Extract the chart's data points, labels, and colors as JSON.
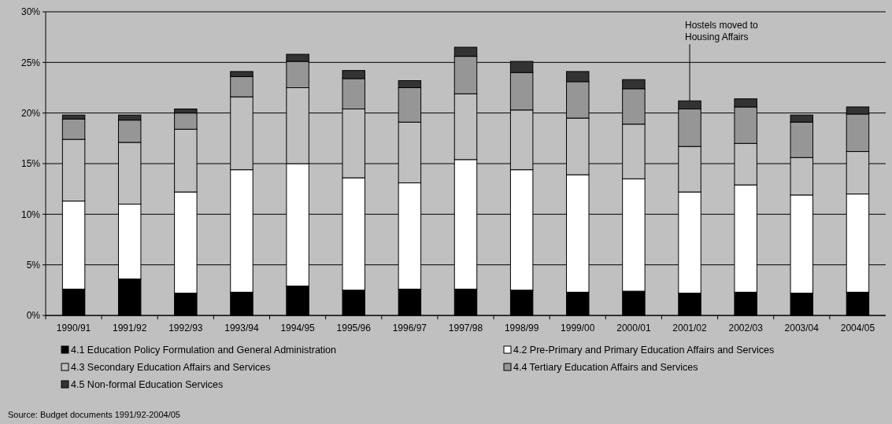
{
  "chart_data": {
    "type": "bar",
    "stacked": true,
    "categories": [
      "1990/91",
      "1991/92",
      "1992/93",
      "1993/94",
      "1994/95",
      "1995/96",
      "1996/97",
      "1997/98",
      "1998/99",
      "1999/00",
      "2000/01",
      "2001/02",
      "2002/03",
      "2003/04",
      "2004/05"
    ],
    "series": [
      {
        "name": "4.1 Education Policy Formulation and General Administration",
        "color": "#000000",
        "values": [
          2.6,
          3.6,
          2.2,
          2.3,
          2.9,
          2.5,
          2.6,
          2.6,
          2.5,
          2.3,
          2.4,
          2.2,
          2.3,
          2.2,
          2.3
        ]
      },
      {
        "name": "4.2 Pre-Primary  and Primary Education Affairs and Services",
        "color": "#ffffff",
        "values": [
          8.7,
          7.4,
          10.0,
          12.1,
          12.1,
          11.1,
          10.5,
          12.8,
          11.9,
          11.6,
          11.1,
          10.0,
          10.6,
          9.7,
          9.7
        ]
      },
      {
        "name": "4.3 Secondary Education Affairs and Services",
        "color": "#c0c0c0",
        "values": [
          6.1,
          6.1,
          6.2,
          7.2,
          7.5,
          6.8,
          6.0,
          6.5,
          5.9,
          5.6,
          5.4,
          4.5,
          4.1,
          3.7,
          4.2
        ]
      },
      {
        "name": "4.4 Tertiary Education Affairs and Services",
        "color": "#969696",
        "values": [
          2.0,
          2.2,
          1.6,
          2.0,
          2.6,
          3.0,
          3.4,
          3.7,
          3.7,
          3.6,
          3.5,
          3.7,
          3.6,
          3.5,
          3.7
        ]
      },
      {
        "name": "4.5 Non-formal Education Services",
        "color": "#333333",
        "values": [
          0.4,
          0.5,
          0.4,
          0.5,
          0.7,
          0.8,
          0.7,
          0.9,
          1.1,
          1.0,
          0.9,
          0.8,
          0.8,
          0.7,
          0.7
        ]
      }
    ],
    "ylim": [
      0,
      30
    ],
    "yticks": [
      {
        "value": 0,
        "label": "0%"
      },
      {
        "value": 5,
        "label": "5%"
      },
      {
        "value": 10,
        "label": "10%"
      },
      {
        "value": 15,
        "label": "15%"
      },
      {
        "value": 20,
        "label": "20%"
      },
      {
        "value": 25,
        "label": "25%"
      },
      {
        "value": 30,
        "label": "30%"
      }
    ],
    "grid": "y",
    "legend": "bottom",
    "annotations": [
      {
        "text": "Hostels moved to Housing Affairs",
        "x": "2001/02",
        "y": 21.2
      },
      "Source: Budget documents 1991/92-2004/05"
    ]
  }
}
